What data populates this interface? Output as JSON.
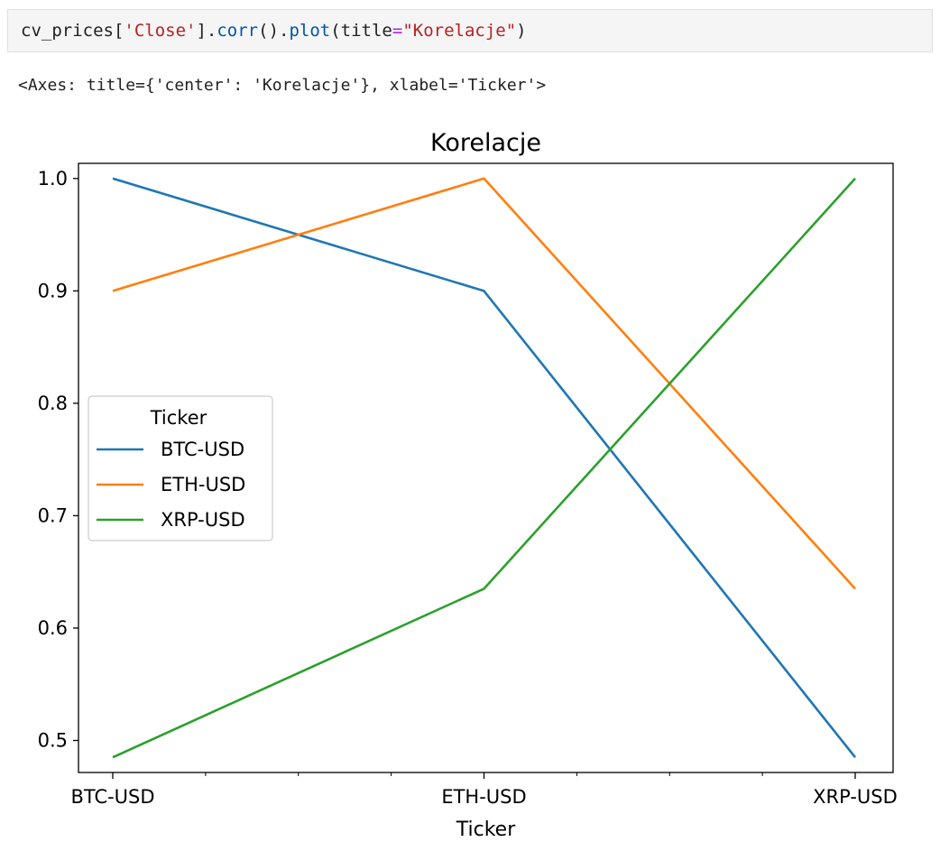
{
  "code_cell": {
    "prefix": "cv_prices[",
    "arg_string": "'Close'",
    "bracket_close": "].",
    "method1": "corr",
    "between": "().",
    "method2": "plot",
    "open_paren": "(title",
    "equals": "=",
    "title_string": "\"Korelacje\"",
    "close_paren": ")"
  },
  "output_text": "<Axes: title={'center': 'Korelacje'}, xlabel='Ticker'>",
  "chart_data": {
    "type": "line",
    "title": "Korelacje",
    "xlabel": "Ticker",
    "ylabel": "",
    "categories": [
      "BTC-USD",
      "ETH-USD",
      "XRP-USD"
    ],
    "series": [
      {
        "name": "BTC-USD",
        "color": "#1f77b4",
        "values": [
          1.0,
          0.9,
          0.485
        ]
      },
      {
        "name": "ETH-USD",
        "color": "#ff7f0e",
        "values": [
          0.9,
          1.0,
          0.635
        ]
      },
      {
        "name": "XRP-USD",
        "color": "#2ca02c",
        "values": [
          0.485,
          0.635,
          1.0
        ]
      }
    ],
    "ylim": [
      0.4715,
      1.0135
    ],
    "yticks": [
      "0.5",
      "0.6",
      "0.7",
      "0.8",
      "0.9",
      "1.0"
    ],
    "grid": false,
    "legend": {
      "title": "Ticker",
      "placement": "center-left"
    }
  }
}
